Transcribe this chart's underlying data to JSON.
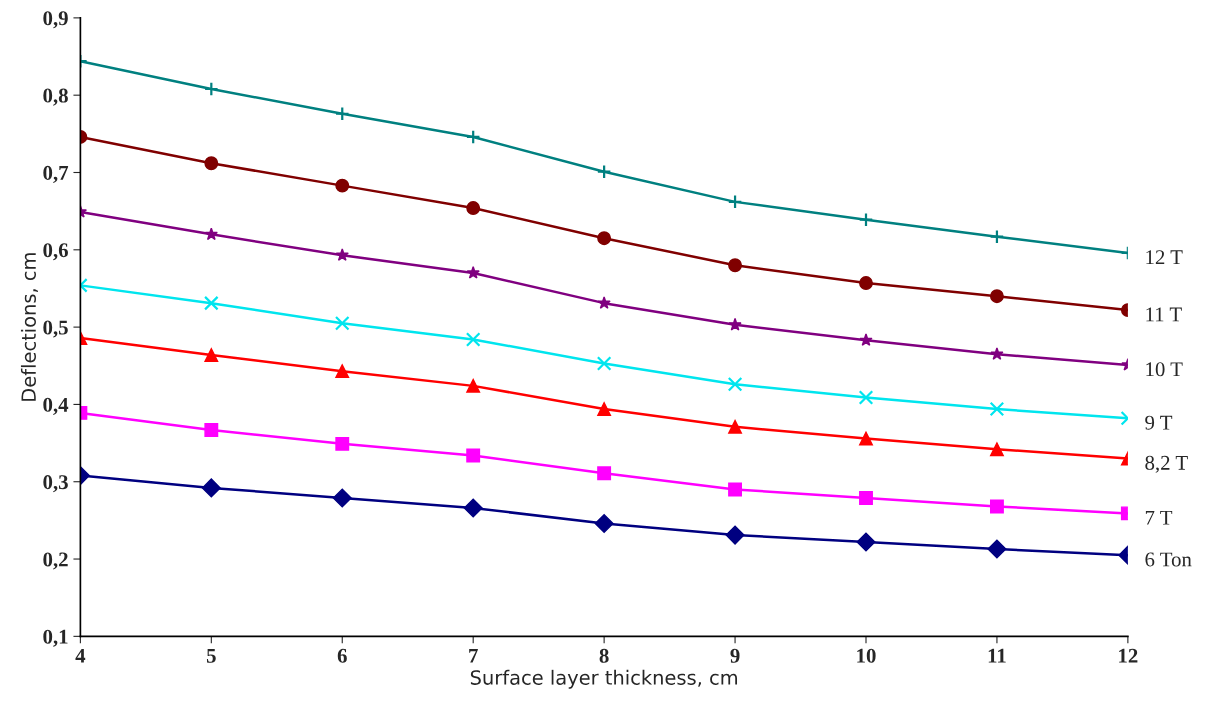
{
  "chart_data": {
    "type": "line",
    "xlabel": "Surface layer thickness, cm",
    "ylabel": "Deflections, cm",
    "x": [
      4,
      5,
      6,
      7,
      8,
      9,
      10,
      11,
      12
    ],
    "xlim": [
      4,
      12
    ],
    "xticks": [
      4,
      5,
      6,
      7,
      8,
      9,
      10,
      11,
      12
    ],
    "ylim": [
      0.1,
      0.9
    ],
    "yticks": [
      {
        "value": 0.1,
        "label": "0,1"
      },
      {
        "value": 0.2,
        "label": "0,2"
      },
      {
        "value": 0.3,
        "label": "0,3"
      },
      {
        "value": 0.4,
        "label": "0,4"
      },
      {
        "value": 0.5,
        "label": "0,5"
      },
      {
        "value": 0.6,
        "label": "0,6"
      },
      {
        "value": 0.7,
        "label": "0,7"
      },
      {
        "value": 0.8,
        "label": "0,8"
      },
      {
        "value": 0.9,
        "label": "0,9"
      }
    ],
    "grid": false,
    "legend": false,
    "series": [
      {
        "name": "12 T",
        "color": "#008080",
        "marker": "cross",
        "values": [
          0.844,
          0.808,
          0.776,
          0.746,
          0.701,
          0.662,
          0.639,
          0.617,
          0.596
        ]
      },
      {
        "name": "11 T",
        "color": "#800000",
        "marker": "circle",
        "values": [
          0.746,
          0.712,
          0.683,
          0.654,
          0.615,
          0.58,
          0.557,
          0.54,
          0.522
        ]
      },
      {
        "name": "10 T",
        "color": "#800080",
        "marker": "star",
        "values": [
          0.649,
          0.62,
          0.593,
          0.57,
          0.531,
          0.503,
          0.483,
          0.465,
          0.451
        ]
      },
      {
        "name": "9 T",
        "color": "#00e5ee",
        "marker": "x",
        "values": [
          0.554,
          0.531,
          0.505,
          0.484,
          0.453,
          0.426,
          0.409,
          0.394,
          0.382
        ]
      },
      {
        "name": "8,2 T",
        "color": "#ff0000",
        "marker": "triangle",
        "values": [
          0.486,
          0.464,
          0.443,
          0.424,
          0.394,
          0.371,
          0.356,
          0.342,
          0.33
        ]
      },
      {
        "name": "7 T",
        "color": "#ff00ff",
        "marker": "square",
        "values": [
          0.389,
          0.367,
          0.349,
          0.334,
          0.311,
          0.29,
          0.279,
          0.268,
          0.259
        ]
      },
      {
        "name": "6 Ton",
        "color": "#000080",
        "marker": "diamond",
        "values": [
          0.308,
          0.292,
          0.279,
          0.266,
          0.246,
          0.231,
          0.222,
          0.213,
          0.205
        ]
      }
    ]
  }
}
